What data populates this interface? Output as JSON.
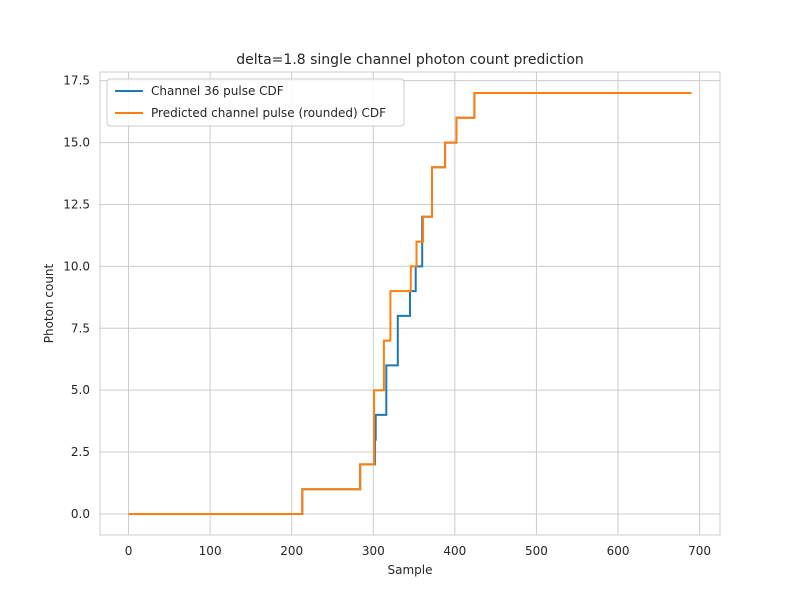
{
  "chart_data": {
    "type": "line",
    "title": "delta=1.8 single channel photon count prediction",
    "xlabel": "Sample",
    "ylabel": "Photon count",
    "xlim": [
      -35,
      725
    ],
    "ylim": [
      -0.85,
      17.85
    ],
    "xticks": [
      0,
      100,
      200,
      300,
      400,
      500,
      600,
      700
    ],
    "yticks": [
      0.0,
      2.5,
      5.0,
      7.5,
      10.0,
      12.5,
      15.0,
      17.5
    ],
    "xtick_labels": [
      "0",
      "100",
      "200",
      "300",
      "400",
      "500",
      "600",
      "700"
    ],
    "ytick_labels": [
      "0.0",
      "2.5",
      "5.0",
      "7.5",
      "10.0",
      "12.5",
      "15.0",
      "17.5"
    ],
    "grid": true,
    "legend_position": "top-left",
    "series": [
      {
        "name": "Channel 36 pulse CDF",
        "color": "#1f77b4",
        "step": true,
        "x": [
          0,
          213,
          284,
          302,
          303,
          316,
          330,
          345,
          352,
          360,
          372,
          388,
          402,
          424,
          690
        ],
        "y": [
          0,
          1,
          2,
          3,
          4,
          6,
          8,
          9,
          10,
          12,
          14,
          15,
          16,
          17,
          17
        ]
      },
      {
        "name": "Predicted channel pulse (rounded) CDF",
        "color": "#ff7f0e",
        "step": true,
        "x": [
          0,
          213,
          284,
          301,
          313,
          321,
          330,
          346,
          353,
          361,
          372,
          388,
          402,
          424,
          690
        ],
        "y": [
          0,
          1,
          2,
          5,
          7,
          9,
          9,
          10,
          11,
          12,
          14,
          15,
          16,
          17,
          17
        ]
      }
    ]
  }
}
